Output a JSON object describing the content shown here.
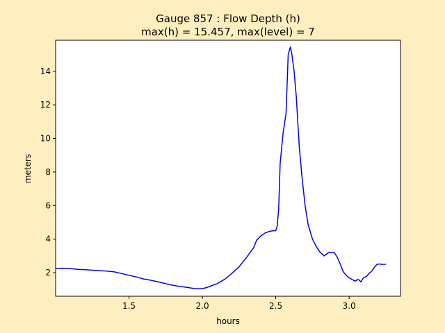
{
  "chart_data": {
    "type": "line",
    "title_line1": "Gauge 857 : Flow Depth (h)",
    "title_line2": "max(h) =  15.457,    max(level) = 7",
    "xlabel": "hours",
    "ylabel": "meters",
    "xlim": [
      1.0,
      3.35
    ],
    "ylim": [
      0.6,
      15.85
    ],
    "xticks": [
      1.5,
      2.0,
      2.5,
      3.0
    ],
    "xtick_labels": [
      "1.5",
      "2.0",
      "2.5",
      "3.0"
    ],
    "yticks": [
      2,
      4,
      6,
      8,
      10,
      12,
      14
    ],
    "ytick_labels": [
      "2",
      "4",
      "6",
      "8",
      "10",
      "12",
      "14"
    ],
    "grid": false,
    "line_color": "#0000ee",
    "background": "#ffefc0",
    "plot_background": "#ffffff",
    "series": [
      {
        "x": [
          1.0,
          1.05,
          1.1,
          1.15,
          1.2,
          1.25,
          1.3,
          1.35,
          1.4,
          1.45,
          1.5,
          1.55,
          1.6,
          1.65,
          1.7,
          1.75,
          1.8,
          1.85,
          1.9,
          1.95,
          2.0,
          2.03,
          2.06,
          2.1,
          2.15,
          2.2,
          2.25,
          2.3,
          2.35,
          2.37,
          2.4,
          2.43,
          2.46,
          2.48,
          2.5,
          2.51,
          2.52,
          2.53,
          2.55,
          2.57,
          2.585,
          2.6,
          2.61,
          2.625,
          2.64,
          2.66,
          2.68,
          2.7,
          2.72,
          2.75,
          2.78,
          2.8,
          2.83,
          2.86,
          2.88,
          2.9,
          2.92,
          2.94,
          2.96,
          2.98,
          3.0,
          3.02,
          3.04,
          3.06,
          3.07,
          3.08,
          3.09,
          3.1,
          3.11,
          3.12,
          3.13,
          3.14,
          3.15,
          3.17,
          3.19,
          3.21,
          3.22,
          3.23,
          3.24,
          3.25
        ],
        "y": [
          2.25,
          2.27,
          2.24,
          2.2,
          2.18,
          2.15,
          2.12,
          2.1,
          2.05,
          1.95,
          1.85,
          1.75,
          1.63,
          1.55,
          1.45,
          1.35,
          1.25,
          1.18,
          1.12,
          1.05,
          1.05,
          1.12,
          1.22,
          1.35,
          1.6,
          1.95,
          2.35,
          2.9,
          3.5,
          3.95,
          4.2,
          4.38,
          4.47,
          4.5,
          4.5,
          4.8,
          5.8,
          8.5,
          10.3,
          11.5,
          15.0,
          15.45,
          15.0,
          14.0,
          12.5,
          9.5,
          7.6,
          6.0,
          4.9,
          4.0,
          3.5,
          3.25,
          3.0,
          3.2,
          3.22,
          3.2,
          2.9,
          2.5,
          2.05,
          1.85,
          1.7,
          1.6,
          1.5,
          1.6,
          1.55,
          1.45,
          1.6,
          1.7,
          1.75,
          1.8,
          1.9,
          2.0,
          2.05,
          2.3,
          2.5,
          2.52,
          2.5,
          2.5,
          2.5,
          2.5
        ]
      }
    ]
  }
}
